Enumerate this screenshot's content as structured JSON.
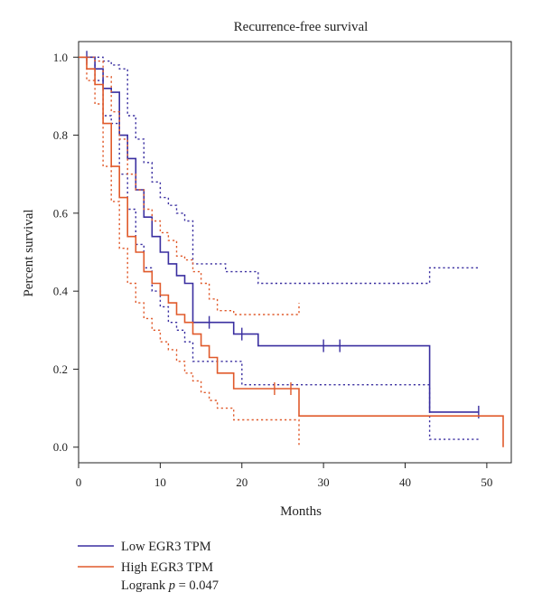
{
  "chart_data": {
    "type": "line",
    "subtype": "kaplan-meier",
    "title": "Recurrence-free survival",
    "xlabel": "Months",
    "ylabel": "Percent survival",
    "xlim": [
      0,
      53
    ],
    "ylim": [
      -0.04,
      1.04
    ],
    "xticks": [
      0,
      10,
      20,
      30,
      40,
      50
    ],
    "yticks": [
      0.0,
      0.2,
      0.4,
      0.6,
      0.8,
      1.0
    ],
    "ytick_labels": [
      "0.0",
      "0.2",
      "0.4",
      "0.6",
      "0.8",
      "1.0"
    ],
    "grid": false,
    "legend_position": "bottom-left",
    "series": [
      {
        "name": "Low EGR3 TPM",
        "color": "#3a2fa0",
        "x": [
          0,
          2,
          3,
          4,
          5,
          6,
          7,
          8,
          9,
          10,
          11,
          12,
          13,
          14,
          19,
          22,
          43,
          49
        ],
        "y": [
          1.0,
          0.97,
          0.92,
          0.91,
          0.8,
          0.74,
          0.66,
          0.59,
          0.54,
          0.5,
          0.47,
          0.44,
          0.42,
          0.32,
          0.29,
          0.26,
          0.09,
          0.09
        ],
        "censor_x": [
          1,
          16,
          20,
          30,
          32,
          49
        ],
        "ci_upper": {
          "x": [
            0,
            2,
            3,
            4,
            5,
            6,
            7,
            8,
            9,
            10,
            11,
            12,
            13,
            14,
            18,
            22,
            43,
            49
          ],
          "y": [
            1.0,
            1.0,
            0.99,
            0.98,
            0.97,
            0.85,
            0.79,
            0.73,
            0.68,
            0.64,
            0.62,
            0.6,
            0.58,
            0.47,
            0.45,
            0.42,
            0.46,
            0.46
          ]
        },
        "ci_lower": {
          "x": [
            0,
            2,
            3,
            4,
            5,
            6,
            7,
            8,
            9,
            10,
            11,
            12,
            13,
            14,
            20,
            22,
            43,
            49
          ],
          "y": [
            1.0,
            0.94,
            0.85,
            0.83,
            0.7,
            0.61,
            0.52,
            0.46,
            0.4,
            0.36,
            0.32,
            0.3,
            0.27,
            0.22,
            0.16,
            0.16,
            0.02,
            0.02
          ]
        }
      },
      {
        "name": "High EGR3 TPM",
        "color": "#e05a2b",
        "x": [
          0,
          1,
          2,
          3,
          4,
          5,
          6,
          7,
          8,
          9,
          10,
          11,
          12,
          13,
          14,
          15,
          16,
          17,
          19,
          22,
          27,
          52
        ],
        "y": [
          1.0,
          0.97,
          0.93,
          0.83,
          0.72,
          0.64,
          0.54,
          0.5,
          0.45,
          0.42,
          0.39,
          0.37,
          0.34,
          0.32,
          0.29,
          0.26,
          0.23,
          0.19,
          0.15,
          0.15,
          0.08,
          0.0
        ],
        "censor_x": [
          24,
          26
        ],
        "ci_upper": {
          "x": [
            0,
            1,
            2,
            3,
            4,
            5,
            6,
            7,
            8,
            9,
            10,
            11,
            12,
            13,
            14,
            15,
            16,
            17,
            19,
            27
          ],
          "y": [
            1.0,
            1.0,
            0.99,
            0.95,
            0.86,
            0.79,
            0.7,
            0.66,
            0.61,
            0.58,
            0.55,
            0.53,
            0.49,
            0.48,
            0.45,
            0.42,
            0.38,
            0.35,
            0.34,
            0.37
          ]
        },
        "ci_lower": {
          "x": [
            0,
            1,
            2,
            3,
            4,
            5,
            6,
            7,
            8,
            9,
            10,
            11,
            12,
            13,
            14,
            15,
            16,
            17,
            19,
            27
          ],
          "y": [
            1.0,
            0.94,
            0.88,
            0.72,
            0.63,
            0.51,
            0.42,
            0.37,
            0.33,
            0.3,
            0.27,
            0.25,
            0.22,
            0.19,
            0.17,
            0.14,
            0.12,
            0.1,
            0.07,
            0.0
          ]
        }
      }
    ],
    "annotation": {
      "text_prefix": "Logrank ",
      "text_italic": "p",
      "text_suffix": " = 0.047"
    }
  }
}
